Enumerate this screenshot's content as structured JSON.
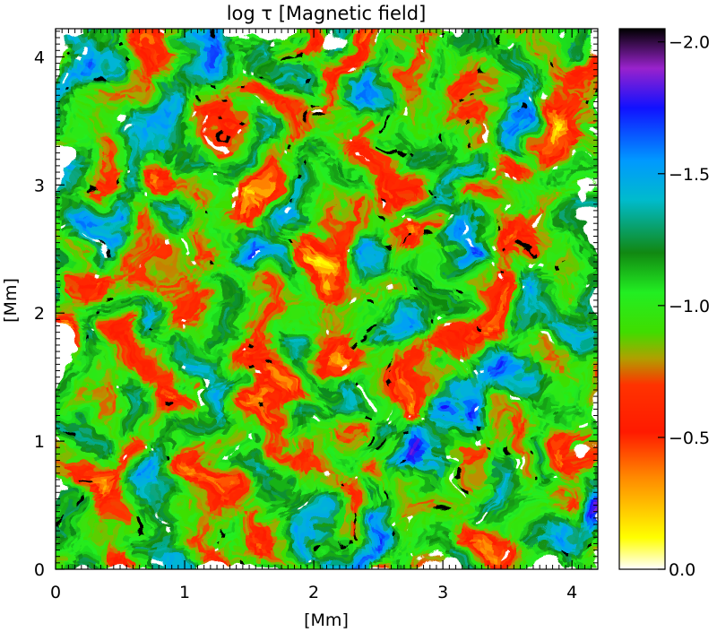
{
  "chart_data": {
    "type": "heatmap",
    "title": "log τ [Magnetic field]",
    "xlabel": "[Mm]",
    "ylabel": "[Mm]",
    "xlim": [
      0,
      4.2
    ],
    "ylim": [
      0,
      4.22
    ],
    "x_ticks": [
      0,
      1,
      2,
      3,
      4
    ],
    "y_ticks": [
      0,
      1,
      2,
      3,
      4
    ],
    "x_tick_labels": [
      "0",
      "1",
      "2",
      "3",
      "4"
    ],
    "y_tick_labels": [
      "0",
      "1",
      "2",
      "3",
      "4"
    ],
    "colorbar": {
      "range": [
        0.0,
        -2.05
      ],
      "ticks": [
        -2.0,
        -1.5,
        -1.0,
        -0.5,
        0.0
      ],
      "tick_labels": [
        "−2.0",
        "−1.5",
        "−1.0",
        "−0.5",
        "0.0"
      ],
      "colors": [
        {
          "value": 0.0,
          "color": "#ffffff"
        },
        {
          "value": -0.12,
          "color": "#ffff00"
        },
        {
          "value": -0.35,
          "color": "#ff8800"
        },
        {
          "value": -0.52,
          "color": "#ff1a00"
        },
        {
          "value": -0.7,
          "color": "#ff3300"
        },
        {
          "value": -0.8,
          "color": "#b0a000"
        },
        {
          "value": -0.9,
          "color": "#40dd00"
        },
        {
          "value": -1.05,
          "color": "#22ee22"
        },
        {
          "value": -1.2,
          "color": "#118811"
        },
        {
          "value": -1.4,
          "color": "#00bbcc"
        },
        {
          "value": -1.55,
          "color": "#0099ff"
        },
        {
          "value": -1.75,
          "color": "#1111ff"
        },
        {
          "value": -1.9,
          "color": "#9922cc"
        },
        {
          "value": -2.05,
          "color": "#000000"
        }
      ]
    },
    "grid": false
  }
}
